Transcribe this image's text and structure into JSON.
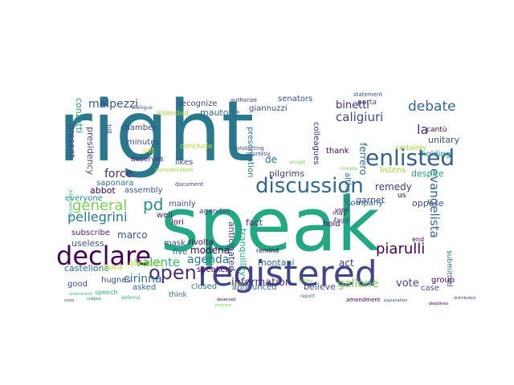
{
  "wordcloud": {
    "words": [
      {
        "text": "right",
        "color": "#2a788e"
      },
      {
        "text": "speak",
        "color": "#22a884"
      },
      {
        "text": "registered",
        "color": "#414487"
      },
      {
        "text": "declare",
        "color": "#440154"
      },
      {
        "text": "discussion",
        "color": "#31688e"
      },
      {
        "text": "enlisted",
        "color": "#355f8d"
      },
      {
        "text": "open",
        "color": "#46327e"
      },
      {
        "text": "debate",
        "color": "#31688e"
      },
      {
        "text": "general",
        "color": "#7ad151"
      },
      {
        "text": "pellegrini",
        "color": "#2a788e"
      },
      {
        "text": "information",
        "color": "#46327e"
      },
      {
        "text": "caligiuri",
        "color": "#414487"
      },
      {
        "text": "piarulli",
        "color": "#440154"
      },
      {
        "text": "malpezzi",
        "color": "#3b528b"
      },
      {
        "text": "binetti",
        "color": "#482878"
      },
      {
        "text": "pd",
        "color": "#21918c"
      },
      {
        "text": "valente",
        "color": "#35b779"
      },
      {
        "text": "gallone",
        "color": "#7ad151"
      },
      {
        "text": "agenda",
        "color": "#2a788e"
      },
      {
        "text": "force",
        "color": "#472d7b"
      },
      {
        "text": "modena",
        "color": "#440154"
      },
      {
        "text": "evangelista",
        "color": "#31688e"
      },
      {
        "text": "marco",
        "color": "#3b528b"
      },
      {
        "text": "cirinna",
        "color": "#2c728e"
      },
      {
        "text": "remedy",
        "color": "#443983"
      },
      {
        "text": "vote",
        "color": "#3e4989"
      },
      {
        "text": "castellone",
        "color": "#31688e"
      },
      {
        "text": "la",
        "color": "#482878"
      },
      {
        "text": "de",
        "color": "#2c728e"
      },
      {
        "text": "present",
        "color": "#3b528b"
      },
      {
        "text": "conzatti",
        "color": "#21918c"
      },
      {
        "text": "presidency",
        "color": "#3e4989"
      },
      {
        "text": "ferrero",
        "color": "#2c728e"
      },
      {
        "text": "pilgrims",
        "color": "#46327e"
      },
      {
        "text": "fact",
        "color": "#482878"
      },
      {
        "text": "montani",
        "color": "#31688e"
      },
      {
        "text": "anticipated",
        "color": "#433e85"
      },
      {
        "text": "tranquillity",
        "color": "#20a486"
      },
      {
        "text": "act",
        "color": "#443983"
      },
      {
        "text": "presentation",
        "color": "#2a788e"
      },
      {
        "text": "colleagues",
        "color": "#481f70"
      },
      {
        "text": "cantù",
        "color": "#440154"
      },
      {
        "text": "unitary",
        "color": "#3b528b"
      },
      {
        "text": "holding",
        "color": "#21918c"
      },
      {
        "text": "despite",
        "color": "#1f9e89"
      },
      {
        "text": "oppose",
        "color": "#3e4989"
      },
      {
        "text": "submitted",
        "color": "#2a788e"
      },
      {
        "text": "group",
        "color": "#440154"
      },
      {
        "text": "case",
        "color": "#3b528b"
      },
      {
        "text": "believe",
        "color": "#3e4989"
      },
      {
        "text": "announced",
        "color": "#31688e"
      },
      {
        "text": "closed",
        "color": "#2c728e"
      },
      {
        "text": "asked",
        "color": "#31688e"
      },
      {
        "text": "hugnes",
        "color": "#3e4989"
      },
      {
        "text": "mura",
        "color": "#b5de2b"
      },
      {
        "text": "speakers",
        "color": "#440154"
      },
      {
        "text": "questors",
        "color": "#bddf26"
      },
      {
        "text": "rivolta",
        "color": "#440154"
      },
      {
        "text": "mask",
        "color": "#3e4989"
      },
      {
        "text": "five",
        "color": "#31688e"
      },
      {
        "text": "useless",
        "color": "#3b528b"
      },
      {
        "text": "subscribe",
        "color": "#481f70"
      },
      {
        "text": "good",
        "color": "#3e4989"
      },
      {
        "text": "everyone",
        "color": "#21918c"
      },
      {
        "text": "abbot",
        "color": "#440154"
      },
      {
        "text": "assembly",
        "color": "#3b528b"
      },
      {
        "text": "mainly",
        "color": "#3e4989"
      },
      {
        "text": "well",
        "color": "#482878"
      },
      {
        "text": "lori",
        "color": "#440154"
      },
      {
        "text": "saponara",
        "color": "#2c728e"
      },
      {
        "text": "deserves",
        "color": "#472d7b"
      },
      {
        "text": "likes",
        "color": "#3e4989"
      },
      {
        "text": "minutes",
        "color": "#3b528b"
      },
      {
        "text": "chamber",
        "color": "#414487"
      },
      {
        "text": "conclude",
        "color": "#b5de2b"
      },
      {
        "text": "recognize",
        "color": "#414487"
      },
      {
        "text": "intended",
        "color": "#a0da39"
      },
      {
        "text": "mautone",
        "color": "#31688e"
      },
      {
        "text": "giannuzzi",
        "color": "#3e4989"
      },
      {
        "text": "senators",
        "color": "#3b528b"
      },
      {
        "text": "porta",
        "color": "#3b528b"
      },
      {
        "text": "certainly",
        "color": "#a0da39"
      },
      {
        "text": "listens",
        "color": "#a0da39"
      },
      {
        "text": "garnet",
        "color": "#3e4989"
      },
      {
        "text": "although",
        "color": "#2c728e"
      },
      {
        "text": "thank",
        "color": "#440154"
      },
      {
        "text": "hold",
        "color": "#440154"
      },
      {
        "text": "company",
        "color": "#31688e"
      },
      {
        "text": "agendas",
        "color": "#3e4989"
      },
      {
        "text": "bill",
        "color": "#3e4989"
      },
      {
        "text": "yet",
        "color": "#fde725"
      },
      {
        "text": "may",
        "color": "#481f70"
      },
      {
        "text": "faggi",
        "color": "#3e4989"
      },
      {
        "text": "remind",
        "color": "#440154"
      },
      {
        "text": "document",
        "color": "#3e4989"
      },
      {
        "text": "consideration",
        "color": "#a0da39"
      },
      {
        "text": "us",
        "color": "#440154"
      },
      {
        "text": "amendment",
        "color": "#440154"
      },
      {
        "text": "think",
        "color": "#31688e"
      },
      {
        "text": "speech",
        "color": "#35b779"
      },
      {
        "text": "deferral",
        "color": "#35b779"
      },
      {
        "text": "end",
        "color": "#440154"
      },
      {
        "text": "conducting",
        "color": "#3b528b"
      },
      {
        "text": "authorize",
        "color": "#46327e"
      },
      {
        "text": "courtesy",
        "color": "#3e4989"
      },
      {
        "text": "vono",
        "color": "#440154"
      },
      {
        "text": "climate",
        "color": "#7ad151"
      },
      {
        "text": "accept",
        "color": "#7ad151"
      },
      {
        "text": "report",
        "color": "#31688e"
      },
      {
        "text": "today",
        "color": "#6ece58"
      },
      {
        "text": "intervention",
        "color": "#35b779"
      },
      {
        "text": "dialogue",
        "color": "#3b528b"
      },
      {
        "text": "statement",
        "color": "#3b528b"
      },
      {
        "text": "understand",
        "color": "#35b779"
      },
      {
        "text": "subject",
        "color": "#2a788e"
      },
      {
        "text": "rules",
        "color": "#3e4989"
      },
      {
        "text": "deserved",
        "color": "#440154"
      },
      {
        "text": "process",
        "color": "#7ad151"
      },
      {
        "text": "propose",
        "color": "#7ad151"
      },
      {
        "text": "explanation",
        "color": "#3e4989"
      },
      {
        "text": "deadlines",
        "color": "#440154"
      },
      {
        "text": "distributed",
        "color": "#3e4989"
      }
    ]
  }
}
